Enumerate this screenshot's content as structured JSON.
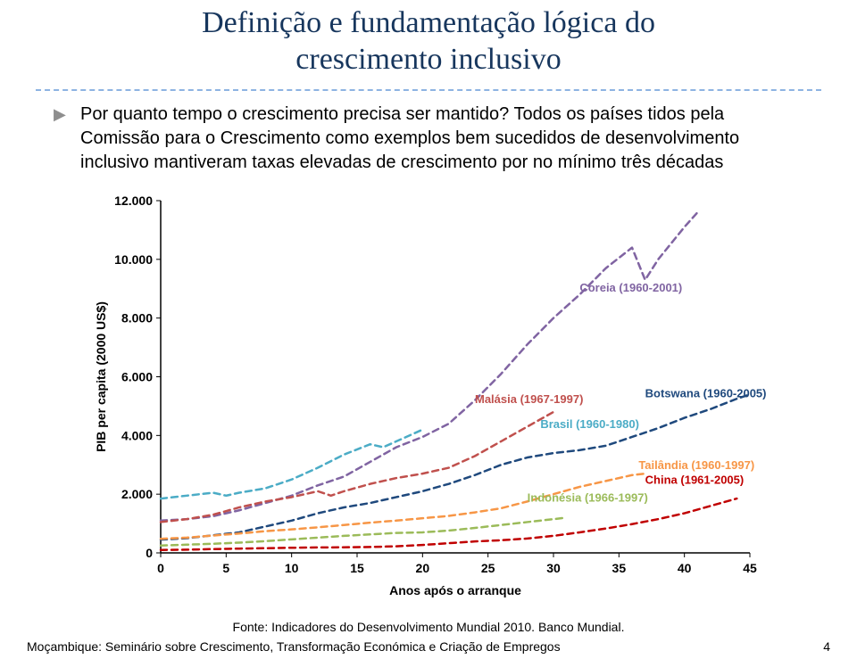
{
  "title_line1": "Definição e fundamentação lógica do",
  "title_line2": "crescimento inclusivo",
  "bullet": "Por quanto tempo o crescimento precisa ser mantido? Todos os países tidos pela Comissão para o Crescimento como exemplos bem sucedidos de desenvolvimento inclusivo mantiveram taxas elevadas de crescimento por no mínimo três décadas",
  "source": "Fonte: Indicadores do Desenvolvimento Mundial 2010. Banco Mundial.",
  "footer": "Moçambique: Seminário sobre Crescimento, Transformação Económica e Criação de Empregos",
  "pagenum": "4",
  "chart": {
    "type": "line",
    "x_axis": {
      "label": "Anos após o arranque",
      "min": 0,
      "max": 45,
      "tick_step": 5,
      "ticks": [
        0,
        5,
        10,
        15,
        20,
        25,
        30,
        35,
        40,
        45
      ]
    },
    "y_axis": {
      "label": "PIB per capita (2000 US$)",
      "min": 0,
      "max": 12000,
      "tick_step": 2000,
      "ticks": [
        0,
        2000,
        4000,
        6000,
        8000,
        10000,
        12000
      ],
      "tick_labels": [
        "0",
        "2.000",
        "4.000",
        "6.000",
        "8.000",
        "10.000",
        "12.000"
      ]
    },
    "plot_bg": "#ffffff",
    "axis_color": "#000000",
    "line_width": 2.5,
    "dash": "7,5",
    "label_fontsize": 14,
    "tick_fontsize": 14,
    "series": [
      {
        "id": "coreia",
        "name": "Coreia (1960-2001)",
        "color": "#8064a2",
        "label_xy": [
          32,
          8900
        ],
        "points": [
          [
            0,
            1100
          ],
          [
            2,
            1150
          ],
          [
            4,
            1250
          ],
          [
            6,
            1450
          ],
          [
            8,
            1700
          ],
          [
            10,
            1950
          ],
          [
            12,
            2300
          ],
          [
            14,
            2600
          ],
          [
            16,
            3100
          ],
          [
            18,
            3600
          ],
          [
            20,
            3950
          ],
          [
            22,
            4400
          ],
          [
            24,
            5200
          ],
          [
            26,
            6100
          ],
          [
            28,
            7100
          ],
          [
            30,
            8000
          ],
          [
            32,
            8800
          ],
          [
            34,
            9700
          ],
          [
            36,
            10400
          ],
          [
            37,
            9300
          ],
          [
            38,
            10000
          ],
          [
            40,
            11100
          ],
          [
            41,
            11600
          ]
        ]
      },
      {
        "id": "botswana",
        "name": "Botswana (1960-2005)",
        "color": "#1f497d",
        "label_xy": [
          37,
          5300
        ],
        "points": [
          [
            0,
            450
          ],
          [
            2,
            500
          ],
          [
            4,
            600
          ],
          [
            6,
            700
          ],
          [
            8,
            900
          ],
          [
            10,
            1100
          ],
          [
            12,
            1350
          ],
          [
            14,
            1550
          ],
          [
            16,
            1700
          ],
          [
            18,
            1900
          ],
          [
            20,
            2100
          ],
          [
            22,
            2350
          ],
          [
            24,
            2650
          ],
          [
            26,
            3000
          ],
          [
            28,
            3250
          ],
          [
            30,
            3400
          ],
          [
            32,
            3500
          ],
          [
            34,
            3650
          ],
          [
            36,
            3950
          ],
          [
            38,
            4250
          ],
          [
            40,
            4600
          ],
          [
            42,
            4900
          ],
          [
            44,
            5250
          ],
          [
            45,
            5400
          ]
        ]
      },
      {
        "id": "malasia",
        "name": "Malásia (1967-1997)",
        "color": "#c0504d",
        "label_xy": [
          24,
          5100
        ],
        "points": [
          [
            0,
            1050
          ],
          [
            2,
            1150
          ],
          [
            4,
            1300
          ],
          [
            6,
            1550
          ],
          [
            8,
            1750
          ],
          [
            10,
            1900
          ],
          [
            12,
            2100
          ],
          [
            13,
            1950
          ],
          [
            14,
            2100
          ],
          [
            16,
            2350
          ],
          [
            18,
            2550
          ],
          [
            20,
            2700
          ],
          [
            22,
            2900
          ],
          [
            24,
            3300
          ],
          [
            26,
            3800
          ],
          [
            28,
            4300
          ],
          [
            30,
            4800
          ]
        ]
      },
      {
        "id": "brasil",
        "name": "Brasil (1960-1980)",
        "color": "#4bacc6",
        "label_xy": [
          29,
          4250
        ],
        "points": [
          [
            0,
            1850
          ],
          [
            2,
            1950
          ],
          [
            4,
            2050
          ],
          [
            5,
            1950
          ],
          [
            6,
            2050
          ],
          [
            8,
            2200
          ],
          [
            10,
            2500
          ],
          [
            12,
            2900
          ],
          [
            14,
            3350
          ],
          [
            16,
            3700
          ],
          [
            17,
            3600
          ],
          [
            18,
            3800
          ],
          [
            20,
            4200
          ]
        ]
      },
      {
        "id": "tailandia",
        "name": "Tailândia (1960-1997)",
        "color": "#f79646",
        "label_xy": [
          36.5,
          2850
        ],
        "points": [
          [
            0,
            480
          ],
          [
            2,
            520
          ],
          [
            4,
            590
          ],
          [
            6,
            660
          ],
          [
            8,
            740
          ],
          [
            10,
            800
          ],
          [
            12,
            870
          ],
          [
            14,
            950
          ],
          [
            16,
            1030
          ],
          [
            18,
            1100
          ],
          [
            20,
            1180
          ],
          [
            22,
            1260
          ],
          [
            24,
            1380
          ],
          [
            26,
            1520
          ],
          [
            28,
            1750
          ],
          [
            30,
            2000
          ],
          [
            32,
            2250
          ],
          [
            34,
            2450
          ],
          [
            36,
            2650
          ],
          [
            37,
            2700
          ]
        ]
      },
      {
        "id": "china",
        "name": "China (1961-2005)",
        "color": "#c00000",
        "label_xy": [
          37,
          2350
        ],
        "points": [
          [
            0,
            100
          ],
          [
            2,
            110
          ],
          [
            4,
            130
          ],
          [
            6,
            145
          ],
          [
            8,
            160
          ],
          [
            10,
            175
          ],
          [
            12,
            185
          ],
          [
            14,
            190
          ],
          [
            16,
            200
          ],
          [
            18,
            225
          ],
          [
            20,
            270
          ],
          [
            22,
            330
          ],
          [
            24,
            390
          ],
          [
            26,
            430
          ],
          [
            28,
            490
          ],
          [
            30,
            580
          ],
          [
            32,
            700
          ],
          [
            34,
            830
          ],
          [
            36,
            980
          ],
          [
            38,
            1150
          ],
          [
            40,
            1350
          ],
          [
            42,
            1600
          ],
          [
            44,
            1850
          ]
        ]
      },
      {
        "id": "indonesia",
        "name": "Indonésia (1966-1997)",
        "color": "#9bbb59",
        "label_xy": [
          28,
          1750
        ],
        "points": [
          [
            0,
            250
          ],
          [
            2,
            280
          ],
          [
            4,
            310
          ],
          [
            6,
            350
          ],
          [
            8,
            400
          ],
          [
            10,
            460
          ],
          [
            12,
            520
          ],
          [
            14,
            580
          ],
          [
            16,
            630
          ],
          [
            18,
            680
          ],
          [
            20,
            700
          ],
          [
            22,
            760
          ],
          [
            24,
            850
          ],
          [
            26,
            950
          ],
          [
            28,
            1050
          ],
          [
            30,
            1150
          ],
          [
            31,
            1200
          ]
        ]
      }
    ]
  }
}
